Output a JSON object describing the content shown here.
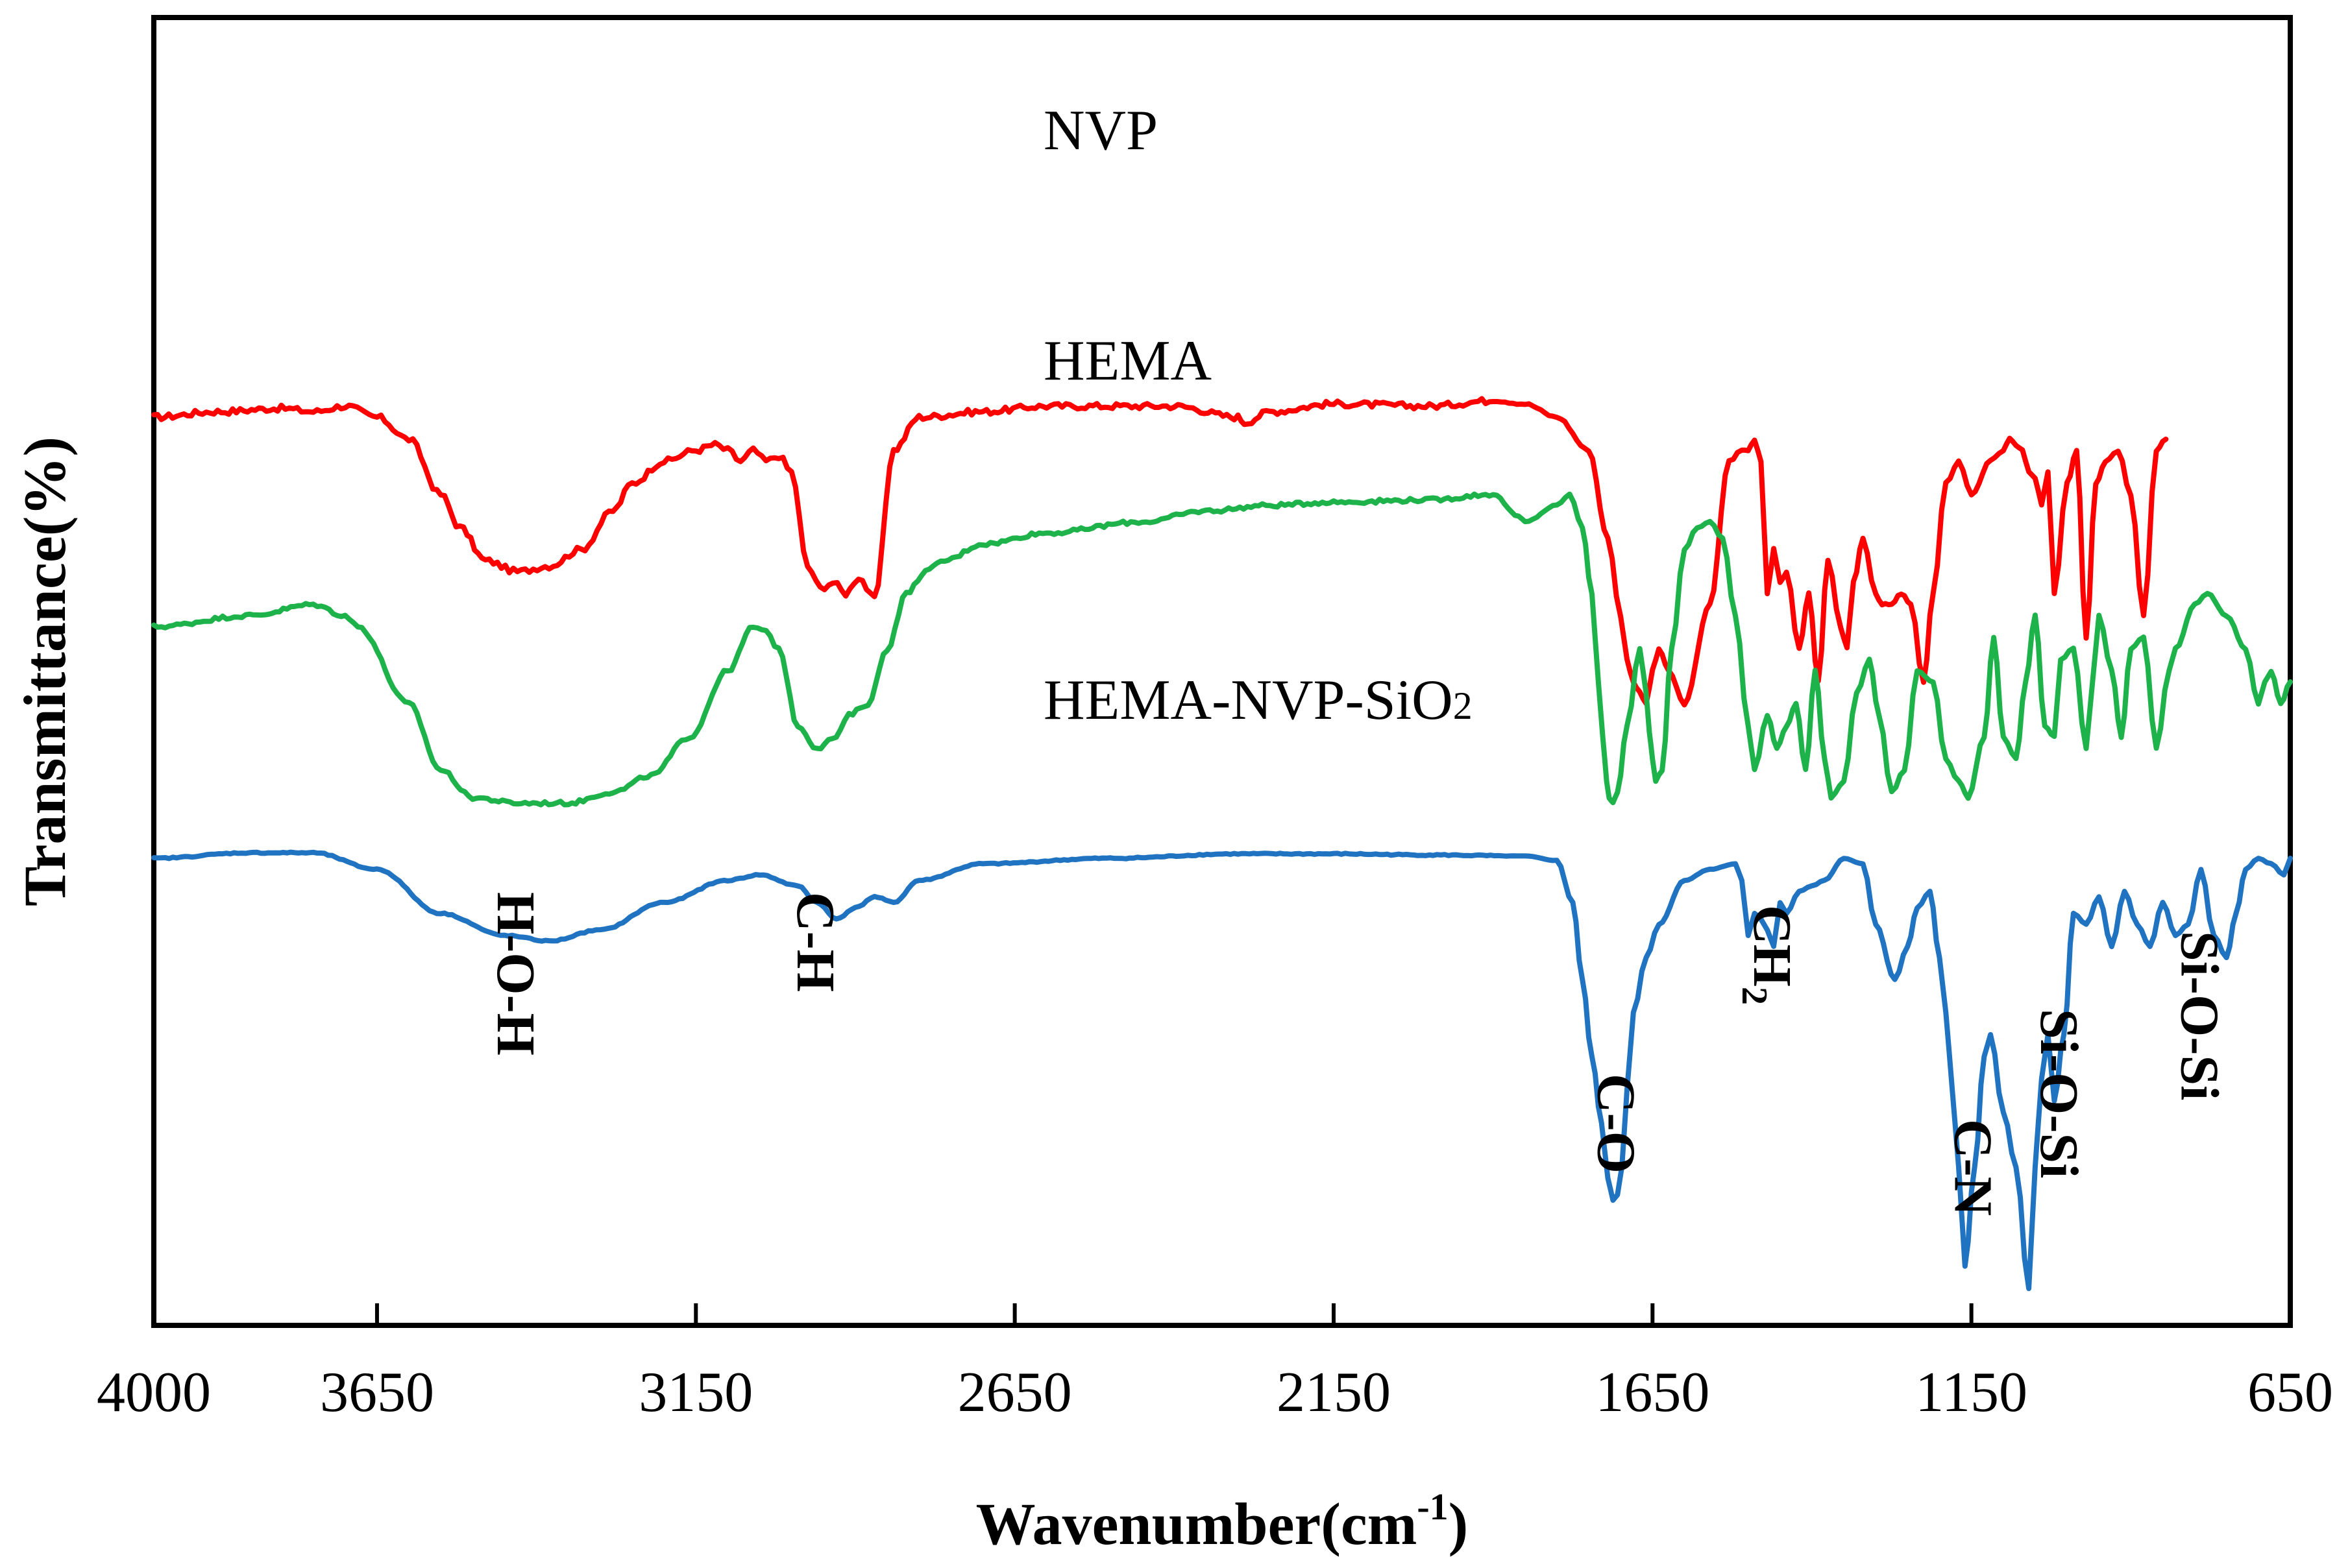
{
  "chart_data": {
    "type": "line",
    "title": "",
    "xlabel": "Wavenumber(cm",
    "xlabel_sup": "-1",
    "xlabel_end": ")",
    "ylabel": "Transmittance(%)",
    "xlim": [
      4000,
      650
    ],
    "x_reversed": true,
    "xticks": [
      4000,
      3650,
      3150,
      2650,
      2150,
      1650,
      1150,
      650
    ],
    "xtick_labels": [
      "4000",
      "3650",
      "3150",
      "2650",
      "2150",
      "1650",
      "1150",
      "650"
    ],
    "ylim": [
      0,
      100
    ],
    "yticks_shown": false,
    "grid": false,
    "colors": {
      "NVP": "#ff0000",
      "HEMA": "#1db34a",
      "HEMA-NVP-SiO2": "#1f73c1"
    },
    "series": [
      {
        "name": "NVP",
        "label": "NVP",
        "color": "#ff0000",
        "x": [
          4000,
          3900,
          3800,
          3750,
          3700,
          3650,
          3600,
          3550,
          3520,
          3480,
          3430,
          3380,
          3330,
          3280,
          3250,
          3200,
          3150,
          3120,
          3100,
          3080,
          3060,
          3040,
          3020,
          3000,
          2975,
          2955,
          2935,
          2915,
          2895,
          2870,
          2840,
          2800,
          2700,
          2600,
          2400,
          2300,
          2290,
          2250,
          2150,
          2000,
          1900,
          1850,
          1800,
          1750,
          1720,
          1700,
          1690,
          1680,
          1670,
          1660,
          1650,
          1640,
          1625,
          1600,
          1560,
          1530,
          1510,
          1500,
          1490,
          1480,
          1470,
          1460,
          1450,
          1440,
          1420,
          1405,
          1390,
          1375,
          1355,
          1345,
          1335,
          1320,
          1300,
          1290,
          1275,
          1260,
          1245,
          1225,
          1210,
          1190,
          1170,
          1150,
          1120,
          1100,
          1090,
          1080,
          1070,
          1060,
          1050,
          1040,
          1030,
          1020,
          1000,
          985,
          970,
          955,
          940,
          920,
          900,
          880,
          860,
          845
        ],
        "values": [
          76.0,
          76.5,
          76.8,
          76.5,
          77.0,
          76.0,
          74.0,
          69.0,
          66.0,
          63.0,
          62.0,
          62.5,
          64.0,
          67.5,
          70.0,
          72.0,
          73.0,
          73.5,
          73.0,
          72.0,
          73.0,
          72.0,
          72.5,
          71.0,
          62.5,
          60.5,
          61.0,
          60.0,
          61.5,
          59.5,
          73.0,
          76.0,
          76.5,
          77.0,
          77.0,
          76.0,
          75.5,
          76.5,
          77.2,
          77.0,
          77.5,
          77.2,
          76.0,
          73.0,
          65.0,
          58.0,
          54.0,
          52.0,
          51.0,
          50.0,
          53.0,
          55.0,
          53.0,
          50.0,
          59.0,
          72.0,
          73.0,
          73.0,
          74.0,
          72.0,
          60.0,
          64.0,
          61.0,
          62.0,
          55.0,
          60.0,
          52.0,
          63.0,
          57.0,
          55.0,
          61.0,
          65.0,
          60.0,
          59.0,
          59.0,
          60.0,
          59.0,
          52.0,
          60.0,
          70.0,
          72.0,
          69.0,
          72.0,
          73.0,
          74.0,
          73.5,
          73.0,
          71.0,
          70.5,
          68.0,
          71.0,
          60.0,
          70.0,
          73.0,
          56.0,
          70.0,
          72.0,
          73.0,
          69.0,
          58.0,
          73.0,
          74.0
        ]
      },
      {
        "name": "HEMA",
        "label": "HEMA",
        "color": "#1db34a",
        "x": [
          4000,
          3850,
          3750,
          3700,
          3680,
          3600,
          3550,
          3500,
          3430,
          3350,
          3280,
          3220,
          3160,
          3100,
          3060,
          3040,
          3020,
          2990,
          2960,
          2930,
          2910,
          2880,
          2850,
          2820,
          2790,
          2760,
          2700,
          2600,
          2450,
          2350,
          2250,
          2150,
          2000,
          1900,
          1860,
          1850,
          1800,
          1780,
          1760,
          1745,
          1735,
          1728,
          1722,
          1718,
          1712,
          1705,
          1690,
          1670,
          1660,
          1655,
          1650,
          1645,
          1635,
          1620,
          1600,
          1580,
          1560,
          1540,
          1520,
          1500,
          1490,
          1470,
          1455,
          1440,
          1425,
          1410,
          1395,
          1380,
          1370,
          1350,
          1330,
          1310,
          1295,
          1275,
          1255,
          1235,
          1210,
          1190,
          1170,
          1155,
          1130,
          1115,
          1100,
          1080,
          1065,
          1050,
          1035,
          1020,
          1010,
          990,
          970,
          960,
          950,
          930,
          915,
          900,
          880,
          860,
          840,
          830,
          800,
          780,
          750,
          720,
          700,
          690,
          680,
          665,
          650
        ],
        "values": [
          57.0,
          58.0,
          59.0,
          58.0,
          57.0,
          50.0,
          44.0,
          41.5,
          41.0,
          41.0,
          42.0,
          43.5,
          47.0,
          53.0,
          57.0,
          56.5,
          55.0,
          48.0,
          46.0,
          47.0,
          49.0,
          50.0,
          55.0,
          60.0,
          62.0,
          63.0,
          64.5,
          65.5,
          66.5,
          67.5,
          68.0,
          68.3,
          68.5,
          69.0,
          67.0,
          66.5,
          68.0,
          69.0,
          66.0,
          60.0,
          52.0,
          47.0,
          43.0,
          41.5,
          41.0,
          42.0,
          48.0,
          55.0,
          51.0,
          47.5,
          45.0,
          43.0,
          44.0,
          55.0,
          64.0,
          66.0,
          66.5,
          65.0,
          58.0,
          48.0,
          44.0,
          49.0,
          46.0,
          48.0,
          50.0,
          44.0,
          53.0,
          45.0,
          41.5,
          43.0,
          51.0,
          54.0,
          49.0,
          42.0,
          44.0,
          53.0,
          52.0,
          45.0,
          43.0,
          41.5,
          47.0,
          56.0,
          47.0,
          45.0,
          52.0,
          58.0,
          48.0,
          47.0,
          54.0,
          55.0,
          46.0,
          52.0,
          58.0,
          53.0,
          47.0,
          55.0,
          56.0,
          46.0,
          53.0,
          55.0,
          59.0,
          60.0,
          58.0,
          55.0,
          50.0,
          52.0,
          53.0,
          50.0,
          52.0
        ]
      },
      {
        "name": "HEMA-NVP-SiO2",
        "label": "HEMA-NVP-SiO",
        "label_sub": "2",
        "color": "#1f73c1",
        "x": [
          4000,
          3850,
          3750,
          3650,
          3550,
          3450,
          3380,
          3300,
          3200,
          3100,
          3050,
          2990,
          2960,
          2930,
          2900,
          2870,
          2840,
          2800,
          2700,
          2500,
          2300,
          2150,
          2000,
          1850,
          1800,
          1775,
          1760,
          1745,
          1730,
          1720,
          1712,
          1705,
          1698,
          1690,
          1680,
          1660,
          1640,
          1600,
          1560,
          1520,
          1510,
          1500,
          1490,
          1480,
          1470,
          1460,
          1450,
          1440,
          1420,
          1400,
          1380,
          1350,
          1320,
          1300,
          1270,
          1250,
          1235,
          1215,
          1200,
          1190,
          1180,
          1170,
          1160,
          1145,
          1130,
          1120,
          1100,
          1080,
          1060,
          1050,
          1040,
          1030,
          1020,
          1005,
          990,
          970,
          950,
          930,
          910,
          890,
          870,
          850,
          830,
          810,
          790,
          770,
          750,
          735,
          720,
          700,
          680,
          660,
          650
        ],
        "values": [
          36.0,
          36.5,
          36.5,
          35.0,
          31.0,
          29.0,
          28.5,
          29.5,
          32.0,
          34.0,
          34.5,
          33.5,
          32.0,
          30.5,
          31.5,
          32.5,
          32.0,
          34.0,
          35.5,
          36.0,
          36.4,
          36.4,
          36.3,
          36.2,
          35.8,
          32.0,
          25.0,
          18.0,
          12.0,
          7.0,
          5.0,
          5.5,
          8.0,
          15.0,
          22.0,
          27.0,
          30.0,
          34.0,
          35.0,
          35.5,
          34.0,
          29.0,
          31.0,
          30.5,
          29.5,
          28.0,
          32.0,
          31.0,
          33.0,
          33.5,
          34.0,
          36.0,
          35.5,
          30.0,
          25.0,
          28.0,
          31.5,
          33.0,
          27.0,
          22.0,
          15.0,
          8.0,
          -1.0,
          8.0,
          18.0,
          20.0,
          13.0,
          8.0,
          -3.0,
          8.0,
          16.0,
          20.0,
          14.0,
          20.0,
          31.0,
          30.0,
          32.5,
          28.0,
          33.0,
          30.0,
          28.0,
          32.0,
          29.0,
          30.0,
          35.0,
          29.0,
          27.0,
          31.0,
          35.0,
          36.0,
          35.5,
          34.5,
          36.0
        ]
      }
    ],
    "annotations": [
      {
        "text": "H-O-H",
        "x": 3430
      },
      {
        "text": "C-H",
        "x": 2960
      },
      {
        "text": "C-O",
        "x": 1705
      },
      {
        "text": "CH",
        "sub": "2",
        "x": 1460
      },
      {
        "text": "C-N",
        "x": 1145
      },
      {
        "text": "Si-O-Si",
        "x": 1010
      },
      {
        "text": "Si-O-Si",
        "x": 790
      }
    ]
  }
}
